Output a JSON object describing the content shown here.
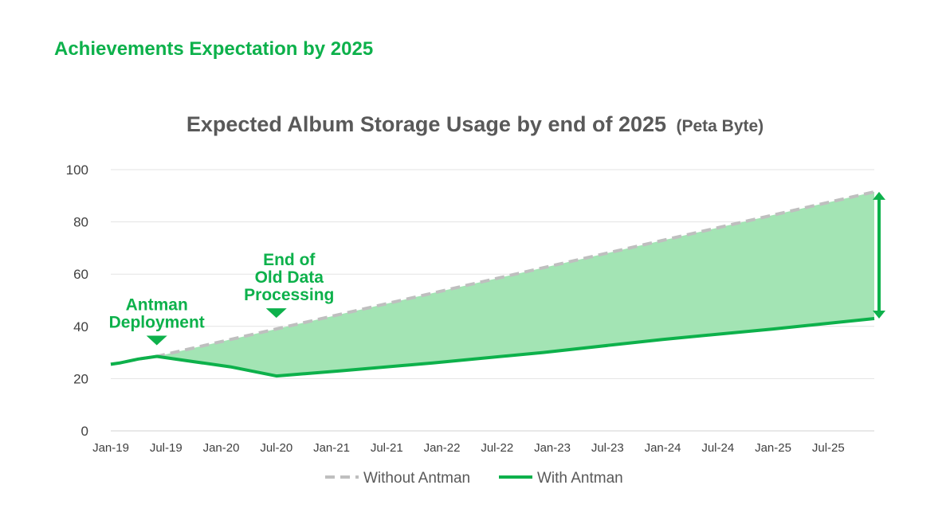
{
  "header": {
    "title": "Achievements Expectation by 2025"
  },
  "chart_data": {
    "type": "line",
    "title": "Expected Album Storage Usage by end of 2025",
    "title_unit": "(Peta Byte)",
    "xlabel": "",
    "ylabel": "",
    "ylim": [
      0,
      100
    ],
    "yticks": [
      "0",
      "20",
      "40",
      "60",
      "80",
      "100"
    ],
    "x_ticks": [
      "Jan-19",
      "Jul-19",
      "Jan-20",
      "Jul-20",
      "Jan-21",
      "Jul-21",
      "Jan-22",
      "Jul-22",
      "Jan-23",
      "Jul-23",
      "Jan-24",
      "Jul-24",
      "Jan-25",
      "Jul-25"
    ],
    "grid": true,
    "legend_position": "bottom",
    "series": [
      {
        "name": "Without Antman",
        "style": "dashed",
        "color": "#bfbfbf",
        "points": [
          [
            0,
            25.5
          ],
          [
            1,
            26
          ],
          [
            3,
            27.5
          ],
          [
            5,
            28.5
          ],
          [
            83,
            91.5
          ]
        ]
      },
      {
        "name": "With Antman",
        "style": "solid",
        "color": "#0db14b",
        "points": [
          [
            0,
            25.5
          ],
          [
            1,
            26
          ],
          [
            3,
            27.5
          ],
          [
            5,
            28.5
          ],
          [
            9,
            26.5
          ],
          [
            13,
            24.5
          ],
          [
            18,
            21
          ],
          [
            25,
            23
          ],
          [
            35,
            26
          ],
          [
            47,
            30
          ],
          [
            60,
            35
          ],
          [
            72,
            39
          ],
          [
            83,
            43
          ]
        ]
      }
    ],
    "shaded_gap": {
      "from_month": 5,
      "to_month": 83,
      "color": "#a3e4b4"
    },
    "annotations": [
      {
        "lines": [
          "Antman",
          "Deployment"
        ],
        "month": 5
      },
      {
        "lines": [
          "End of",
          "Old Data",
          "Processing"
        ],
        "month": 18
      }
    ],
    "end_arrow": {
      "month": 83,
      "from": 43,
      "to": 91.5,
      "color": "#0db14b"
    }
  }
}
